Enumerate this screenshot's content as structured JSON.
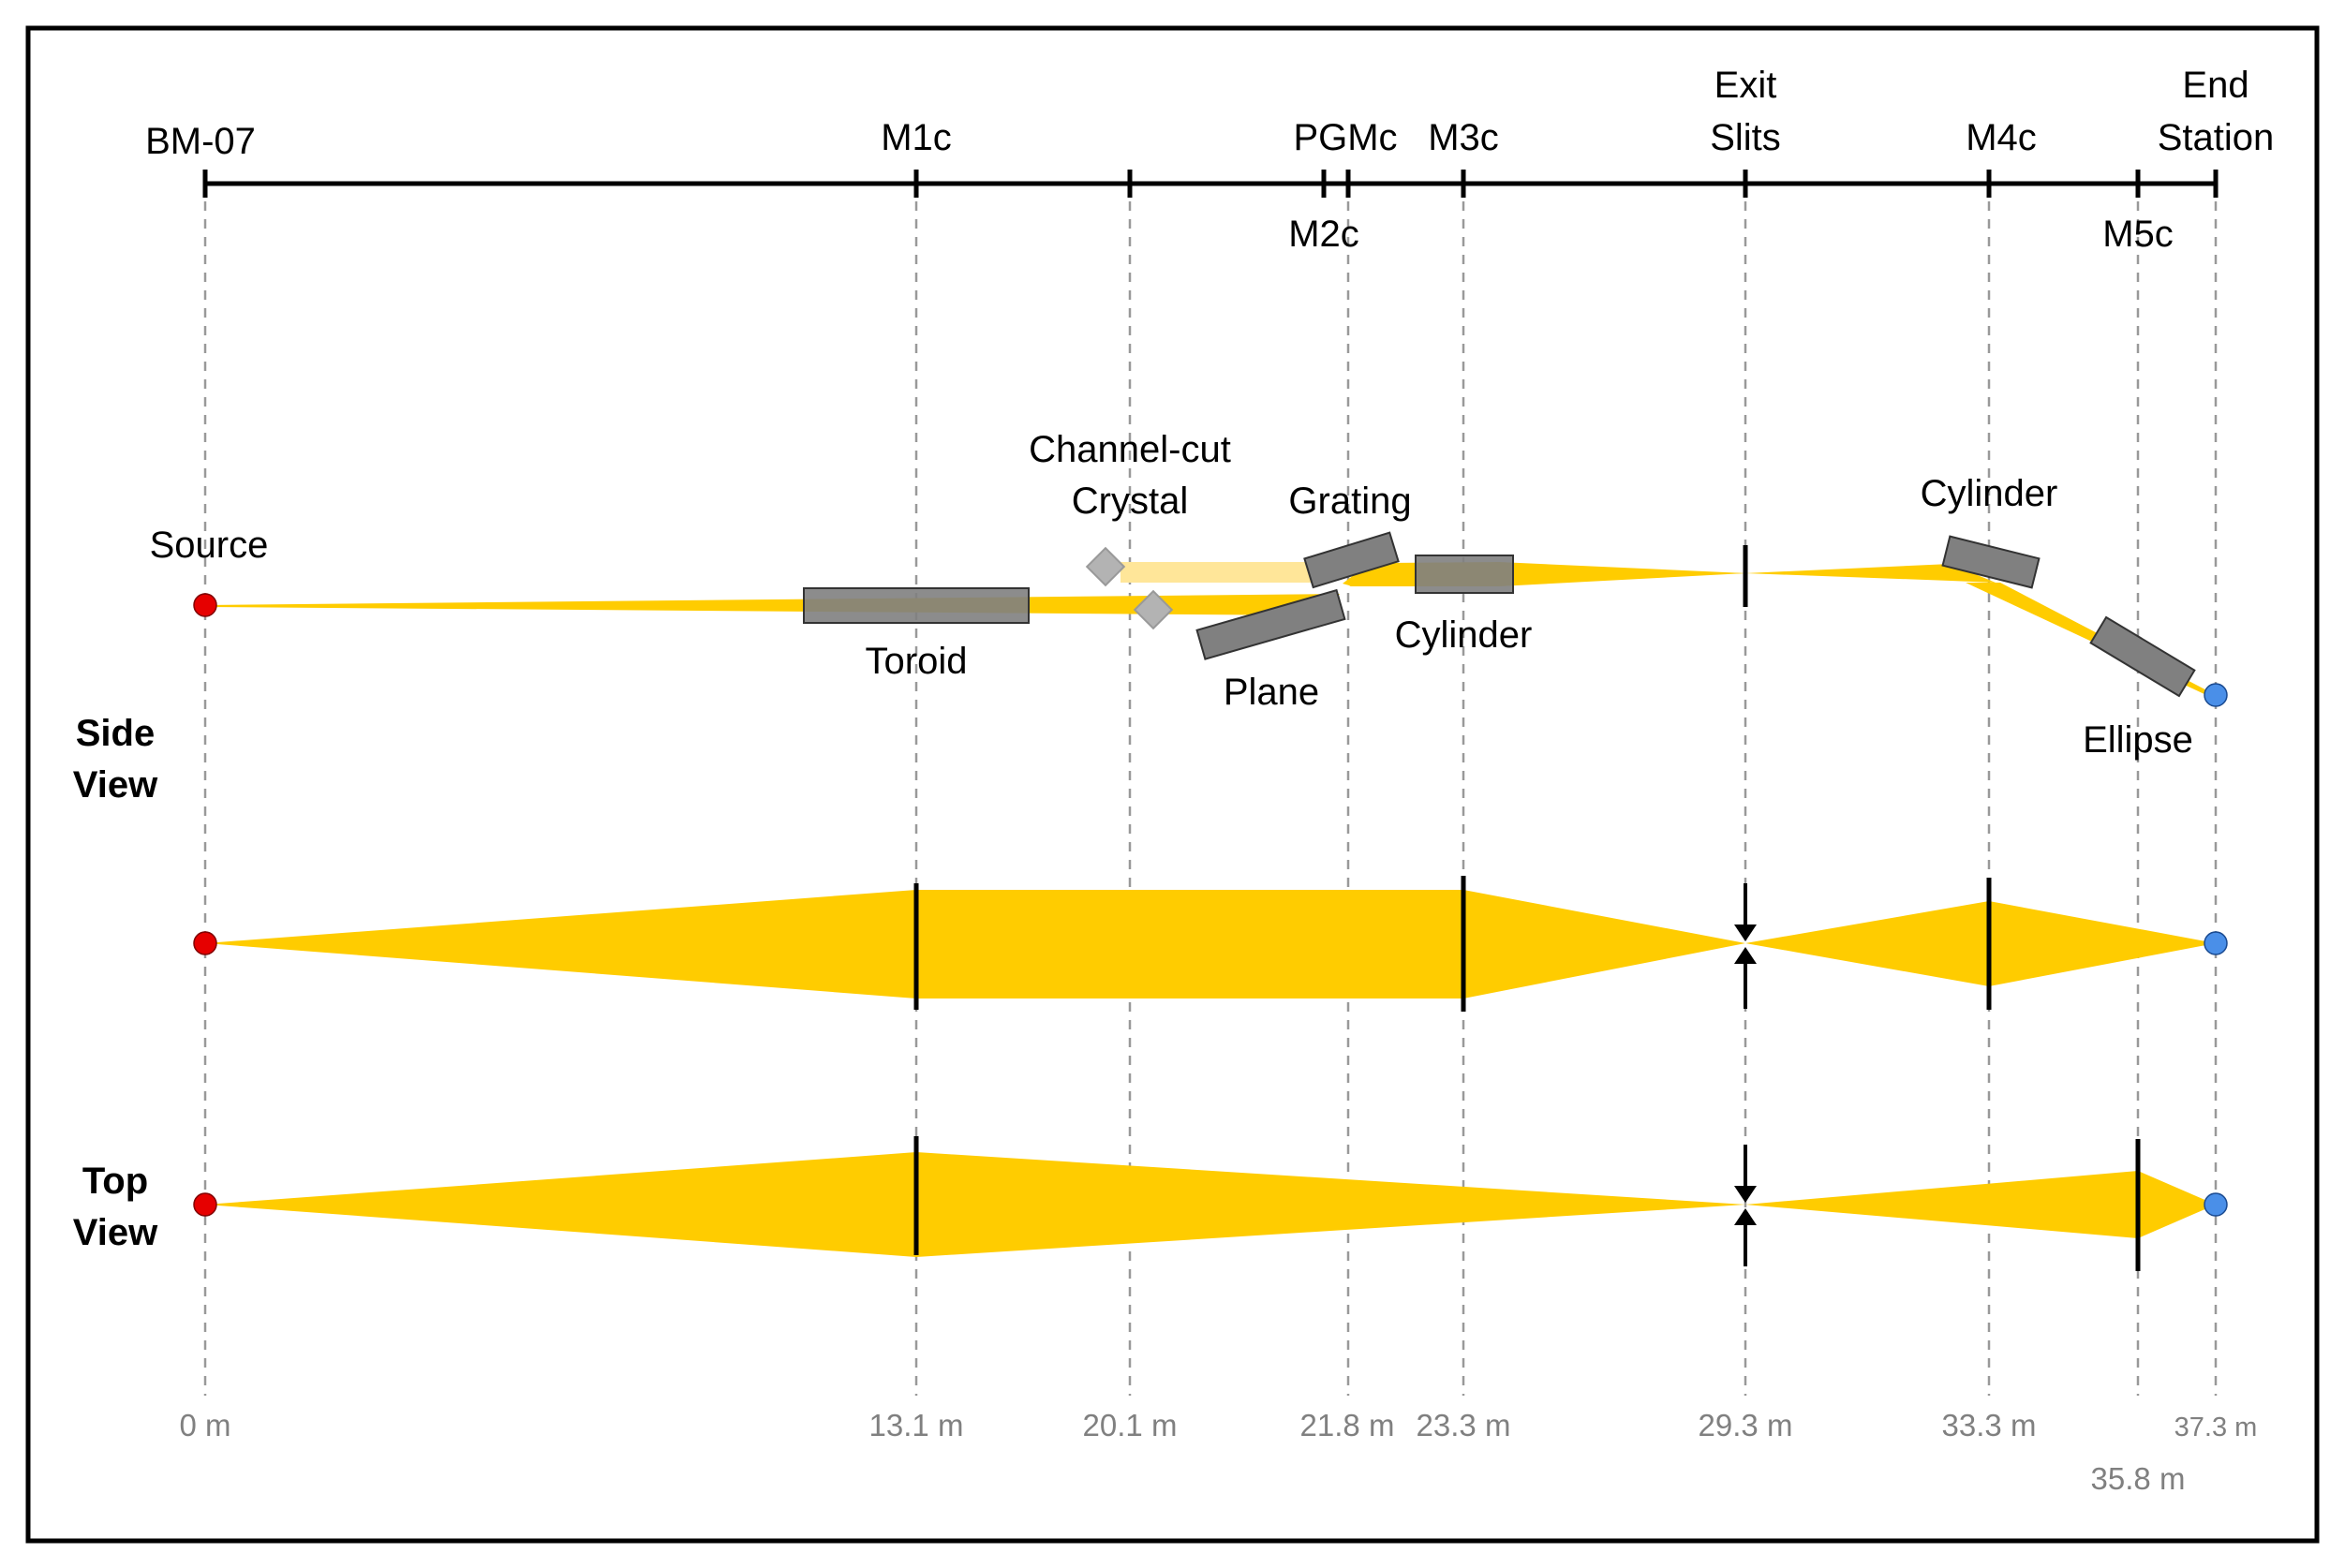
{
  "axis": {
    "top_labels": {
      "bm07": "BM-07",
      "m1c": "M1c",
      "pgmc": "PGMc",
      "m3c": "M3c",
      "exit_slits_1": "Exit",
      "exit_slits_2": "Slits",
      "m4c": "M4c",
      "end_station_1": "End",
      "end_station_2": "Station"
    },
    "bottom_labels": {
      "m2c": "M2c",
      "m5c": "M5c"
    }
  },
  "distances": {
    "d0": "0 m",
    "d131": "13.1 m",
    "d201": "20.1 m",
    "d218": "21.8 m",
    "d233": "23.3 m",
    "d293": "29.3 m",
    "d333": "33.3 m",
    "d358": "35.8 m",
    "d373": "37.3 m"
  },
  "views": {
    "side_1": "Side",
    "side_2": "View",
    "top_1": "Top",
    "top_2": "View"
  },
  "components": {
    "source": "Source",
    "toroid": "Toroid",
    "channel_cut_1": "Channel-cut",
    "channel_cut_2": "Crystal",
    "grating": "Grating",
    "plane": "Plane",
    "cylinder_m3": "Cylinder",
    "cylinder_m4": "Cylinder",
    "ellipse": "Ellipse"
  },
  "colors": {
    "beam": "#FFCC00",
    "beam_faded": "#FFE699",
    "mirror": "#808080",
    "source_point": "#E60000",
    "focus_point": "#4A8FE8",
    "guide_line": "#999999"
  }
}
